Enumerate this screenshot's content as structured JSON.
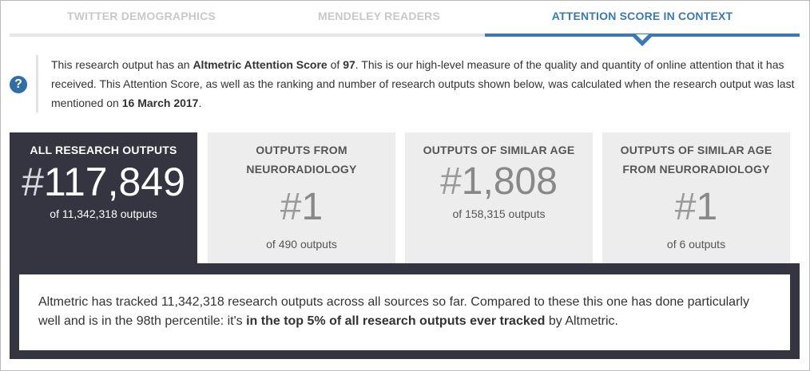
{
  "tabs": [
    {
      "label": "TWITTER DEMOGRAPHICS",
      "active": false
    },
    {
      "label": "MENDELEY READERS",
      "active": false
    },
    {
      "label": "ATTENTION SCORE IN CONTEXT",
      "active": true
    }
  ],
  "info": {
    "part1": "This research output has an ",
    "score_label": "Altmetric Attention Score",
    "part2": " of ",
    "score": "97",
    "part3": ". This is our high-level measure of the quality and quantity of online attention that it has received. This Attention Score, as well as the ranking and number of research outputs shown below, was calculated when the research output was last mentioned on ",
    "date": "16 March 2017",
    "part4": "."
  },
  "cards": [
    {
      "title": "ALL RESEARCH OUTPUTS",
      "hash": "#",
      "rank": "117,849",
      "of": "of 11,342,318 outputs"
    },
    {
      "title": "OUTPUTS FROM NEURORADIOLOGY",
      "hash": "#",
      "rank": "1",
      "of": "of 490 outputs"
    },
    {
      "title": "OUTPUTS OF SIMILAR AGE",
      "hash": "#",
      "rank": "1,808",
      "of": "of 158,315 outputs"
    },
    {
      "title": "OUTPUTS OF SIMILAR AGE FROM NEURORADIOLOGY",
      "hash": "#",
      "rank": "1",
      "of": "of 6 outputs"
    }
  ],
  "summary": {
    "text1": "Altmetric has tracked 11,342,318 research outputs across all sources so far. Compared to these this one has done particularly well and is in the 98th percentile: it's ",
    "bold": "in the top 5% of all research outputs ever tracked",
    "text2": " by Altmetric."
  },
  "colors": {
    "accent": "#3a79b3",
    "dark_panel": "#353541",
    "card_bg": "#ededed"
  },
  "icons": {
    "help": "question-circle-icon"
  },
  "help_icon_glyph": "?"
}
